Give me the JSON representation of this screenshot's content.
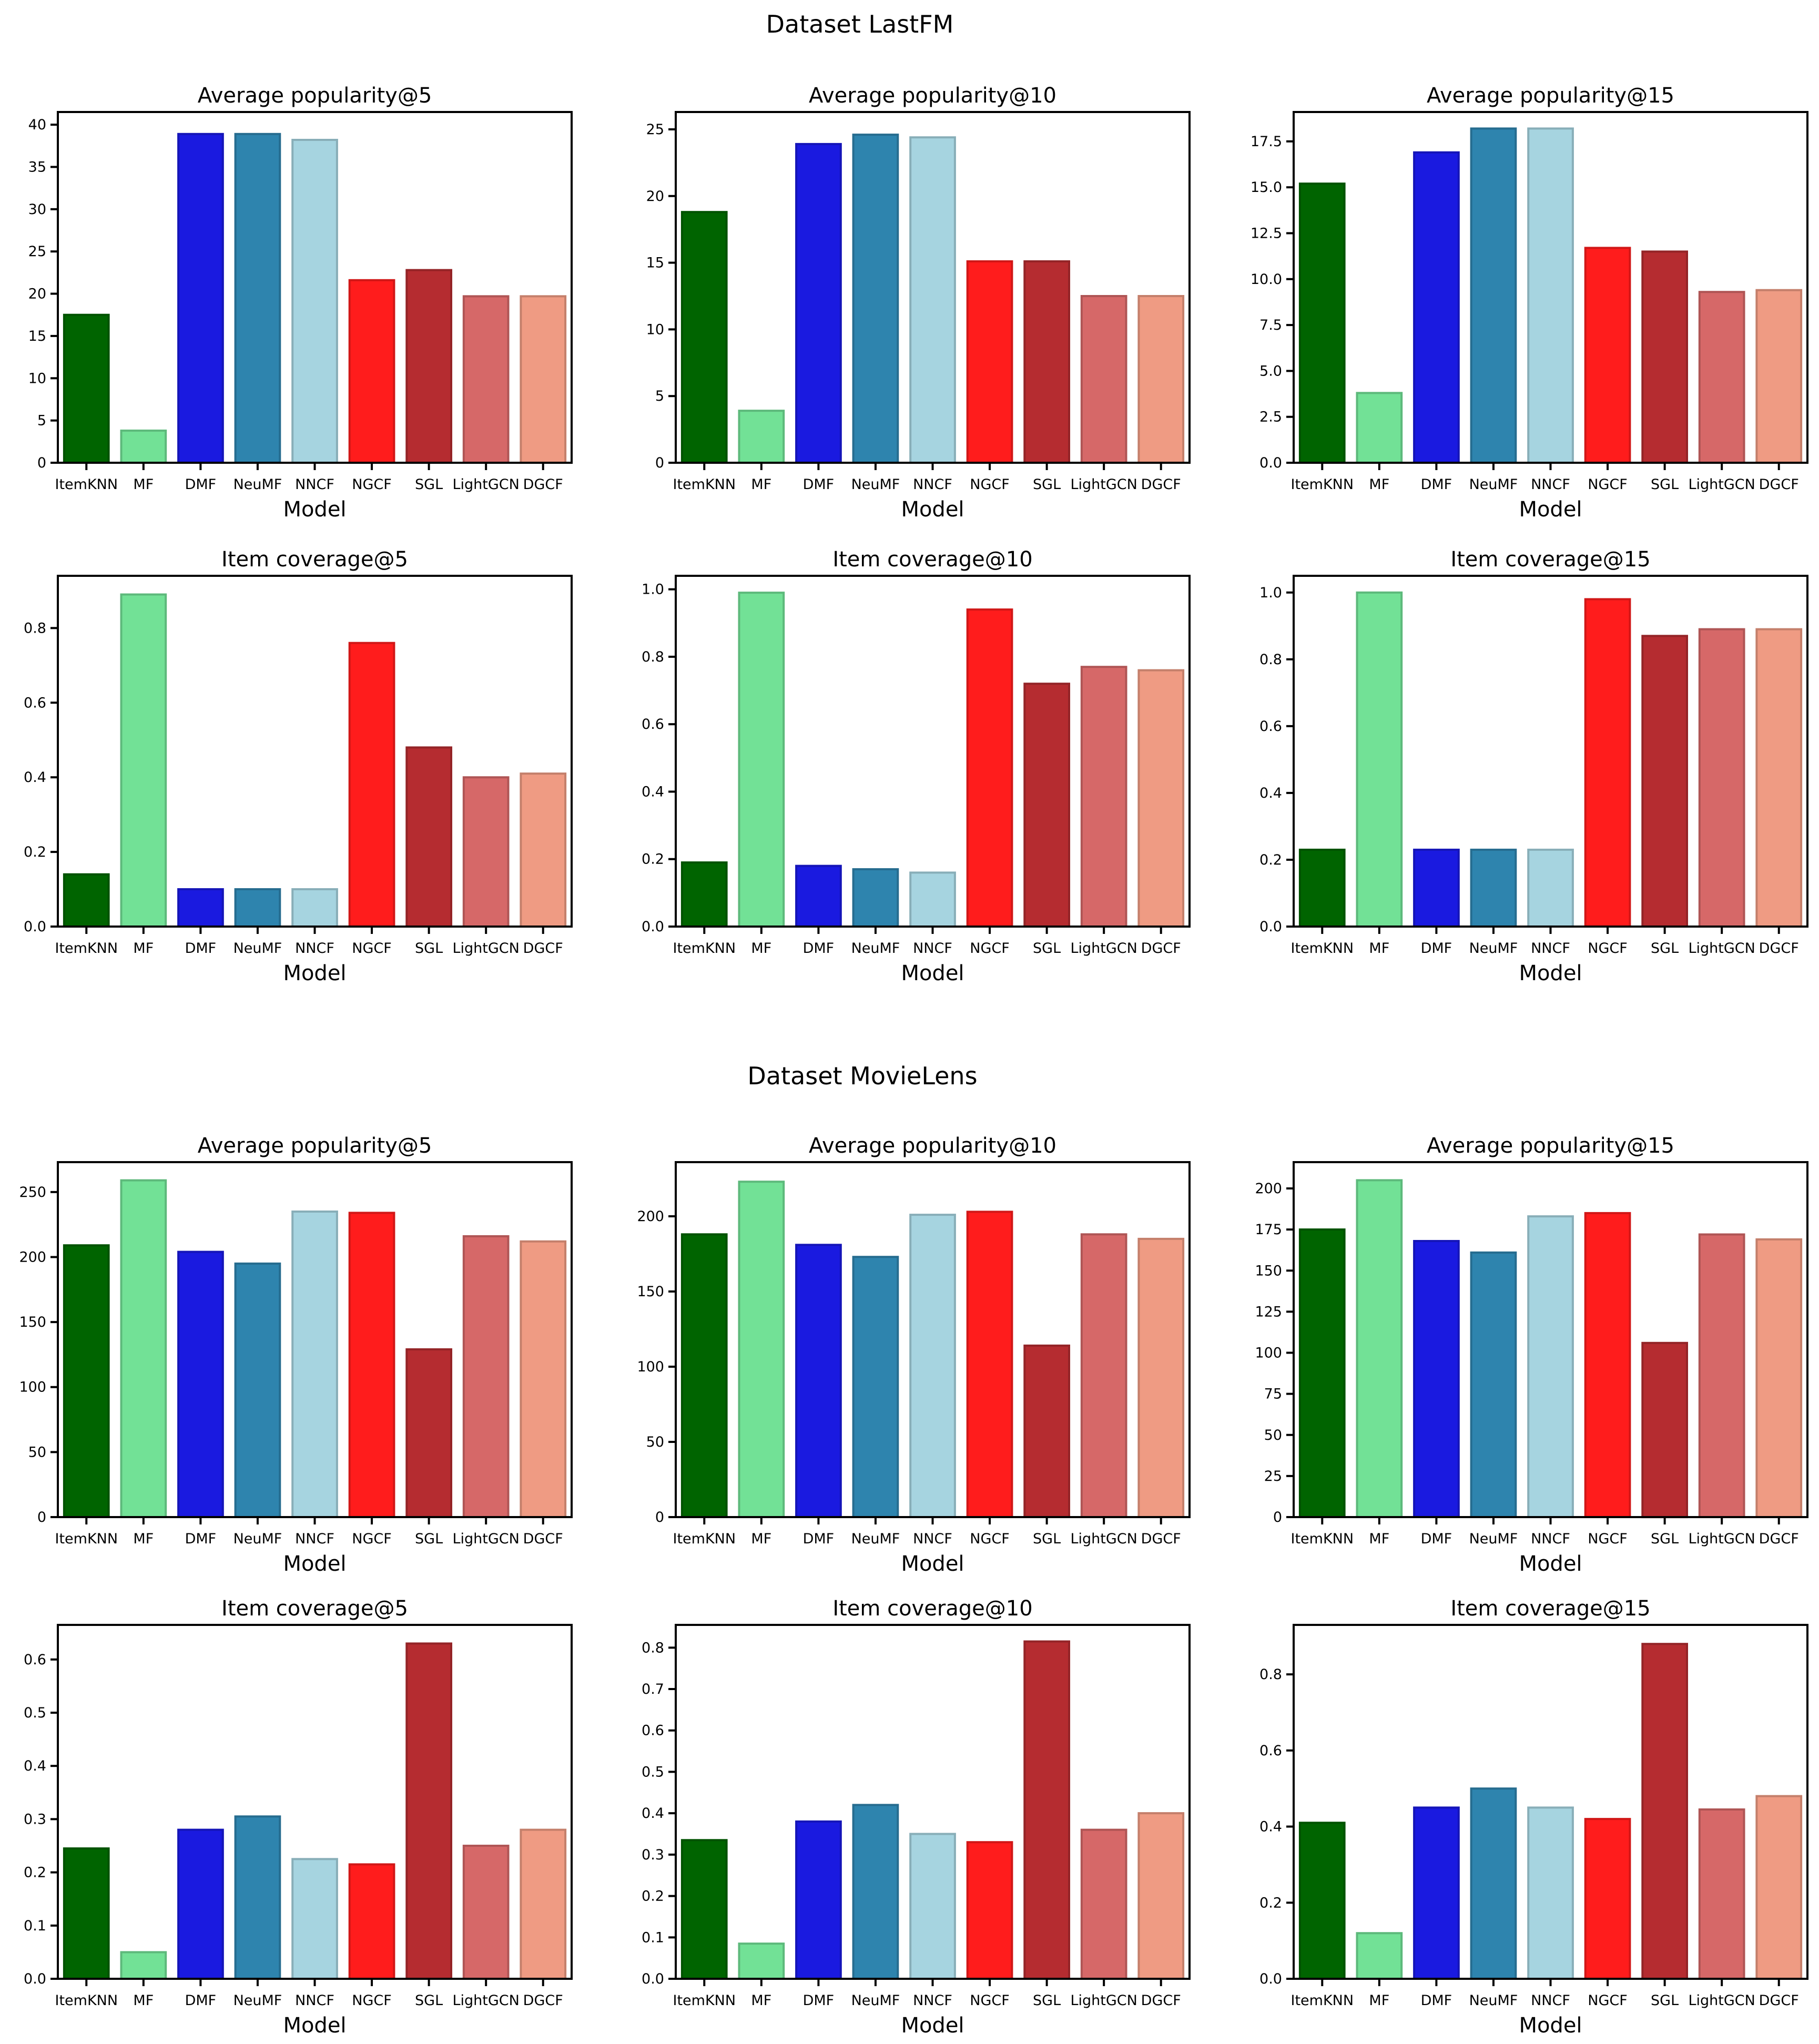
{
  "figure": {
    "sections": [
      {
        "title": "Dataset LastFM"
      },
      {
        "title": "Dataset MovieLens"
      }
    ]
  },
  "palette": {
    "ItemKNN": "#006400",
    "MF": "#72E196",
    "DMF": "#1A1AE0",
    "NeuMF": "#2E84AE",
    "NNCF": "#A6D4E0",
    "NGCF": "#FF1C1C",
    "SGL": "#B52C30",
    "LightGCN": "#D66868",
    "DGCF": "#EF9B83"
  },
  "chart_data": [
    {
      "type": "bar",
      "dataset": "Dataset LastFM",
      "title": "Average popularity@5",
      "xlabel": "Model",
      "ylabel": "",
      "categories": [
        "ItemKNN",
        "MF",
        "DMF",
        "NeuMF",
        "NNCF",
        "NGCF",
        "SGL",
        "LightGCN",
        "DGCF"
      ],
      "values": [
        17.5,
        3.8,
        38.9,
        38.9,
        38.2,
        21.6,
        22.8,
        19.7,
        19.7
      ],
      "ylim": [
        0,
        41.5
      ],
      "yticks": [
        0,
        5,
        10,
        15,
        20,
        25,
        30,
        35,
        40
      ],
      "ytick_labels": [
        "0",
        "5",
        "10",
        "15",
        "20",
        "25",
        "30",
        "35",
        "40"
      ]
    },
    {
      "type": "bar",
      "dataset": "Dataset LastFM",
      "title": "Average popularity@10",
      "xlabel": "Model",
      "ylabel": "",
      "categories": [
        "ItemKNN",
        "MF",
        "DMF",
        "NeuMF",
        "NNCF",
        "NGCF",
        "SGL",
        "LightGCN",
        "DGCF"
      ],
      "values": [
        18.8,
        3.9,
        23.9,
        24.6,
        24.4,
        15.1,
        15.1,
        12.5,
        12.5
      ],
      "ylim": [
        0,
        26.3
      ],
      "yticks": [
        0,
        5,
        10,
        15,
        20,
        25
      ],
      "ytick_labels": [
        "0",
        "5",
        "10",
        "15",
        "20",
        "25"
      ]
    },
    {
      "type": "bar",
      "dataset": "Dataset LastFM",
      "title": "Average popularity@15",
      "xlabel": "Model",
      "ylabel": "",
      "categories": [
        "ItemKNN",
        "MF",
        "DMF",
        "NeuMF",
        "NNCF",
        "NGCF",
        "SGL",
        "LightGCN",
        "DGCF"
      ],
      "values": [
        15.2,
        3.8,
        16.9,
        18.2,
        18.2,
        11.7,
        11.5,
        9.3,
        9.4
      ],
      "ylim": [
        0,
        19.1
      ],
      "yticks": [
        0,
        2.5,
        5,
        7.5,
        10,
        12.5,
        15,
        17.5
      ],
      "ytick_labels": [
        "0.0",
        "2.5",
        "5.0",
        "7.5",
        "10.0",
        "12.5",
        "15.0",
        "17.5"
      ]
    },
    {
      "type": "bar",
      "dataset": "Dataset LastFM",
      "title": "Item coverage@5",
      "xlabel": "Model",
      "ylabel": "",
      "categories": [
        "ItemKNN",
        "MF",
        "DMF",
        "NeuMF",
        "NNCF",
        "NGCF",
        "SGL",
        "LightGCN",
        "DGCF"
      ],
      "values": [
        0.14,
        0.89,
        0.1,
        0.1,
        0.1,
        0.76,
        0.48,
        0.4,
        0.41
      ],
      "ylim": [
        0,
        0.94
      ],
      "yticks": [
        0,
        0.2,
        0.4,
        0.6,
        0.8
      ],
      "ytick_labels": [
        "0.0",
        "0.2",
        "0.4",
        "0.6",
        "0.8"
      ]
    },
    {
      "type": "bar",
      "dataset": "Dataset LastFM",
      "title": "Item coverage@10",
      "xlabel": "Model",
      "ylabel": "",
      "categories": [
        "ItemKNN",
        "MF",
        "DMF",
        "NeuMF",
        "NNCF",
        "NGCF",
        "SGL",
        "LightGCN",
        "DGCF"
      ],
      "values": [
        0.19,
        0.99,
        0.18,
        0.17,
        0.16,
        0.94,
        0.72,
        0.77,
        0.76
      ],
      "ylim": [
        0,
        1.04
      ],
      "yticks": [
        0,
        0.2,
        0.4,
        0.6,
        0.8,
        1.0
      ],
      "ytick_labels": [
        "0.0",
        "0.2",
        "0.4",
        "0.6",
        "0.8",
        "1.0"
      ]
    },
    {
      "type": "bar",
      "dataset": "Dataset LastFM",
      "title": "Item coverage@15",
      "xlabel": "Model",
      "ylabel": "",
      "categories": [
        "ItemKNN",
        "MF",
        "DMF",
        "NeuMF",
        "NNCF",
        "NGCF",
        "SGL",
        "LightGCN",
        "DGCF"
      ],
      "values": [
        0.23,
        1.0,
        0.23,
        0.23,
        0.23,
        0.98,
        0.87,
        0.89,
        0.89
      ],
      "ylim": [
        0,
        1.05
      ],
      "yticks": [
        0,
        0.2,
        0.4,
        0.6,
        0.8,
        1.0
      ],
      "ytick_labels": [
        "0.0",
        "0.2",
        "0.4",
        "0.6",
        "0.8",
        "1.0"
      ]
    },
    {
      "type": "bar",
      "dataset": "Dataset MovieLens",
      "title": "Average popularity@5",
      "xlabel": "Model",
      "ylabel": "",
      "categories": [
        "ItemKNN",
        "MF",
        "DMF",
        "NeuMF",
        "NNCF",
        "NGCF",
        "SGL",
        "LightGCN",
        "DGCF"
      ],
      "values": [
        209,
        259,
        204,
        195,
        235,
        234,
        129,
        216,
        212
      ],
      "ylim": [
        0,
        273
      ],
      "yticks": [
        0,
        50,
        100,
        150,
        200,
        250
      ],
      "ytick_labels": [
        "0",
        "50",
        "100",
        "150",
        "200",
        "250"
      ]
    },
    {
      "type": "bar",
      "dataset": "Dataset MovieLens",
      "title": "Average popularity@10",
      "xlabel": "Model",
      "ylabel": "",
      "categories": [
        "ItemKNN",
        "MF",
        "DMF",
        "NeuMF",
        "NNCF",
        "NGCF",
        "SGL",
        "LightGCN",
        "DGCF"
      ],
      "values": [
        188,
        223,
        181,
        173,
        201,
        203,
        114,
        188,
        185
      ],
      "ylim": [
        0,
        236
      ],
      "yticks": [
        0,
        50,
        100,
        150,
        200
      ],
      "ytick_labels": [
        "0",
        "50",
        "100",
        "150",
        "200"
      ]
    },
    {
      "type": "bar",
      "dataset": "Dataset MovieLens",
      "title": "Average popularity@15",
      "xlabel": "Model",
      "ylabel": "",
      "categories": [
        "ItemKNN",
        "MF",
        "DMF",
        "NeuMF",
        "NNCF",
        "NGCF",
        "SGL",
        "LightGCN",
        "DGCF"
      ],
      "values": [
        175,
        205,
        168,
        161,
        183,
        185,
        106,
        172,
        169
      ],
      "ylim": [
        0,
        216
      ],
      "yticks": [
        0,
        25,
        50,
        75,
        100,
        125,
        150,
        175,
        200
      ],
      "ytick_labels": [
        "0",
        "25",
        "50",
        "75",
        "100",
        "125",
        "150",
        "175",
        "200"
      ]
    },
    {
      "type": "bar",
      "dataset": "Dataset MovieLens",
      "title": "Item coverage@5",
      "xlabel": "Model",
      "ylabel": "",
      "categories": [
        "ItemKNN",
        "MF",
        "DMF",
        "NeuMF",
        "NNCF",
        "NGCF",
        "SGL",
        "LightGCN",
        "DGCF"
      ],
      "values": [
        0.245,
        0.05,
        0.28,
        0.305,
        0.225,
        0.215,
        0.63,
        0.25,
        0.28
      ],
      "ylim": [
        0,
        0.665
      ],
      "yticks": [
        0,
        0.1,
        0.2,
        0.3,
        0.4,
        0.5,
        0.6
      ],
      "ytick_labels": [
        "0.0",
        "0.1",
        "0.2",
        "0.3",
        "0.4",
        "0.5",
        "0.6"
      ]
    },
    {
      "type": "bar",
      "dataset": "Dataset MovieLens",
      "title": "Item coverage@10",
      "xlabel": "Model",
      "ylabel": "",
      "categories": [
        "ItemKNN",
        "MF",
        "DMF",
        "NeuMF",
        "NNCF",
        "NGCF",
        "SGL",
        "LightGCN",
        "DGCF"
      ],
      "values": [
        0.335,
        0.085,
        0.38,
        0.42,
        0.35,
        0.33,
        0.815,
        0.36,
        0.4
      ],
      "ylim": [
        0,
        0.855
      ],
      "yticks": [
        0,
        0.1,
        0.2,
        0.3,
        0.4,
        0.5,
        0.6,
        0.7,
        0.8
      ],
      "ytick_labels": [
        "0.0",
        "0.1",
        "0.2",
        "0.3",
        "0.4",
        "0.5",
        "0.6",
        "0.7",
        "0.8"
      ]
    },
    {
      "type": "bar",
      "dataset": "Dataset MovieLens",
      "title": "Item coverage@15",
      "xlabel": "Model",
      "ylabel": "",
      "categories": [
        "ItemKNN",
        "MF",
        "DMF",
        "NeuMF",
        "NNCF",
        "NGCF",
        "SGL",
        "LightGCN",
        "DGCF"
      ],
      "values": [
        0.41,
        0.12,
        0.45,
        0.5,
        0.45,
        0.42,
        0.88,
        0.445,
        0.48
      ],
      "ylim": [
        0,
        0.93
      ],
      "yticks": [
        0,
        0.2,
        0.4,
        0.6,
        0.8
      ],
      "ytick_labels": [
        "0.0",
        "0.2",
        "0.4",
        "0.6",
        "0.8"
      ]
    }
  ]
}
